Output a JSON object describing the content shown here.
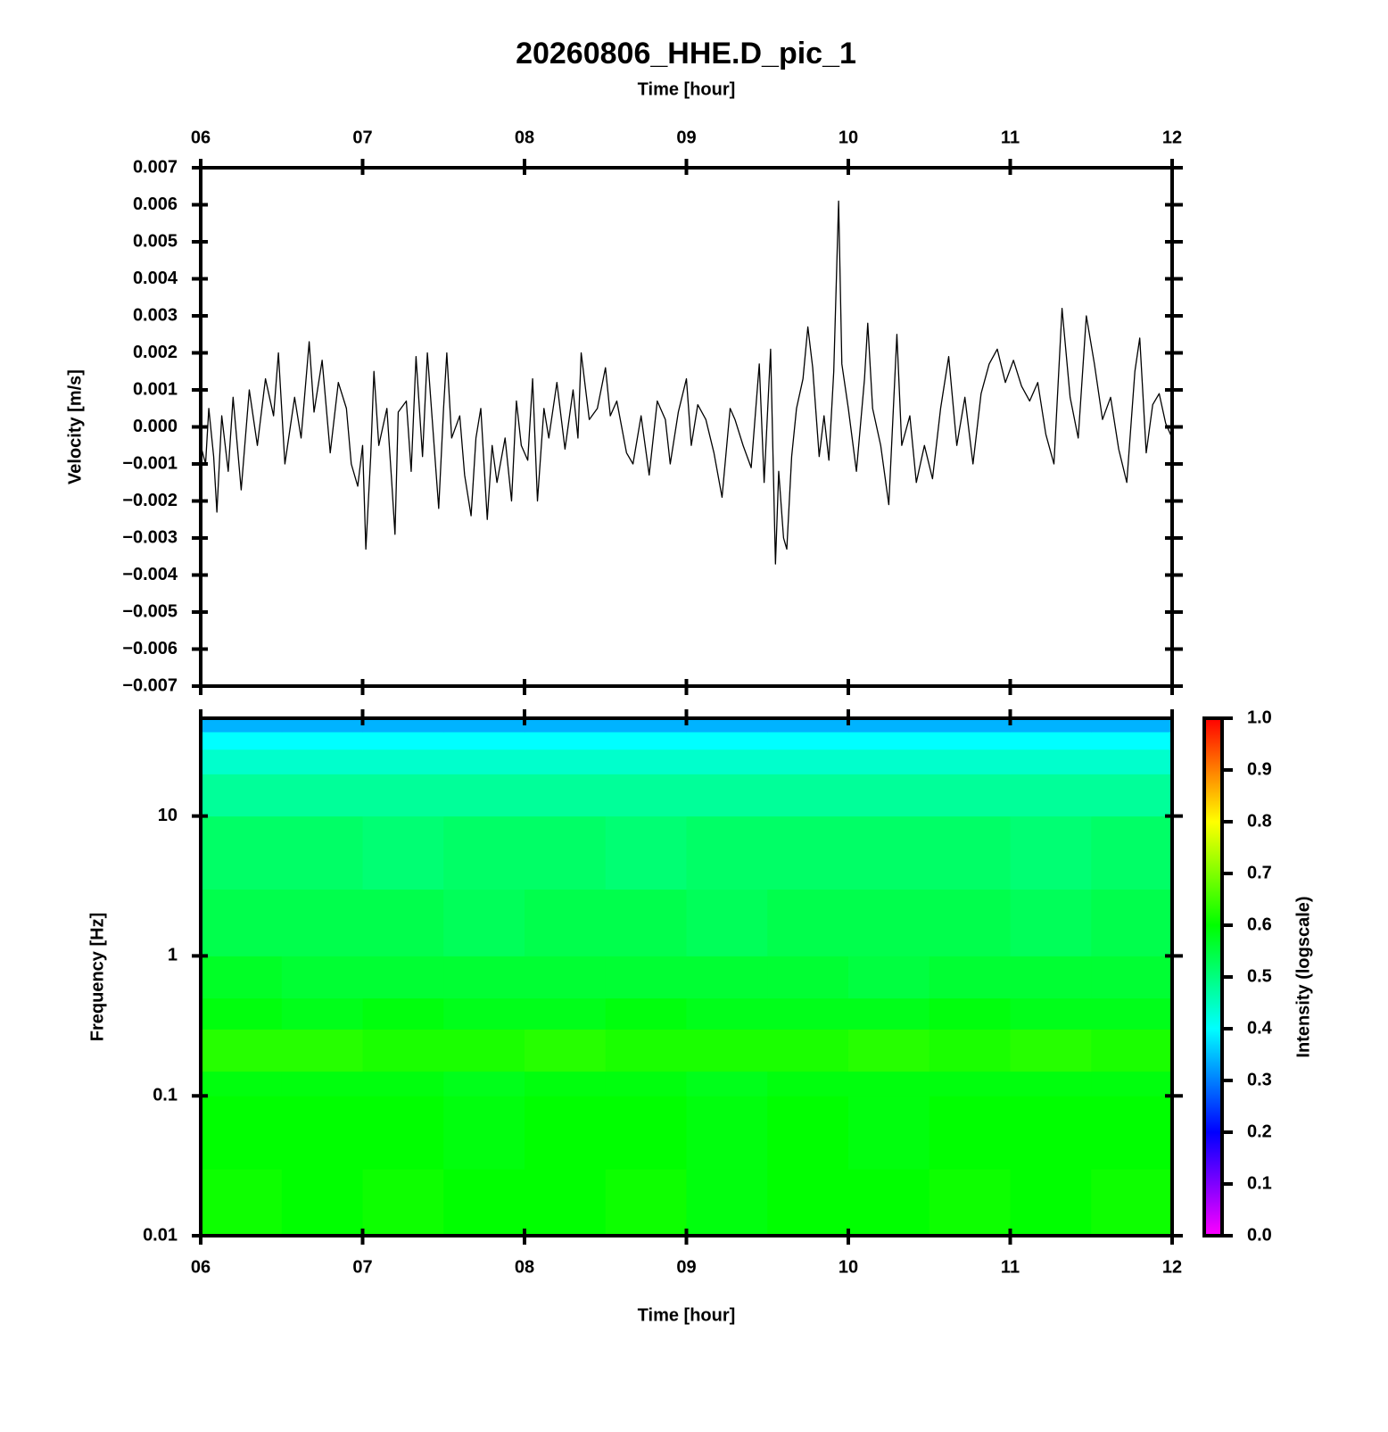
{
  "chart_data": [
    {
      "type": "line",
      "title": "20260806_HHE.D_pic_1",
      "xlabel": "Time [hour]",
      "ylabel": "Velocity [m/s]",
      "xaxis_position": "top",
      "color": "#000000",
      "xlim": [
        6,
        12
      ],
      "xticks": [
        {
          "value": 6,
          "label": "06"
        },
        {
          "value": 7,
          "label": "07"
        },
        {
          "value": 8,
          "label": "08"
        },
        {
          "value": 9,
          "label": "09"
        },
        {
          "value": 10,
          "label": "10"
        },
        {
          "value": 11,
          "label": "11"
        },
        {
          "value": 12,
          "label": "12"
        }
      ],
      "ylim": [
        -0.007,
        0.007
      ],
      "yticks": [
        {
          "value": -0.007,
          "label": "−0.007"
        },
        {
          "value": -0.006,
          "label": "−0.006"
        },
        {
          "value": -0.005,
          "label": "−0.005"
        },
        {
          "value": -0.004,
          "label": "−0.004"
        },
        {
          "value": -0.003,
          "label": "−0.003"
        },
        {
          "value": -0.002,
          "label": "−0.002"
        },
        {
          "value": -0.001,
          "label": "−0.001"
        },
        {
          "value": 0,
          "label": "0.000"
        },
        0.001,
        0.002,
        0.003,
        0.004,
        0.005,
        0.006,
        0.007
      ],
      "x": [
        6.0,
        6.03,
        6.05,
        6.08,
        6.1,
        6.13,
        6.17,
        6.2,
        6.25,
        6.3,
        6.35,
        6.4,
        6.45,
        6.48,
        6.52,
        6.58,
        6.62,
        6.67,
        6.7,
        6.75,
        6.8,
        6.85,
        6.9,
        6.93,
        6.97,
        7.0,
        7.02,
        7.05,
        7.07,
        7.1,
        7.15,
        7.18,
        7.2,
        7.22,
        7.27,
        7.3,
        7.33,
        7.37,
        7.4,
        7.43,
        7.47,
        7.5,
        7.52,
        7.55,
        7.6,
        7.63,
        7.67,
        7.7,
        7.73,
        7.77,
        7.8,
        7.83,
        7.88,
        7.92,
        7.95,
        7.98,
        8.02,
        8.05,
        8.08,
        8.12,
        8.15,
        8.2,
        8.25,
        8.3,
        8.33,
        8.35,
        8.4,
        8.45,
        8.5,
        8.53,
        8.57,
        8.63,
        8.67,
        8.72,
        8.77,
        8.82,
        8.87,
        8.9,
        8.95,
        9.0,
        9.03,
        9.07,
        9.12,
        9.17,
        9.22,
        9.27,
        9.3,
        9.35,
        9.4,
        9.45,
        9.48,
        9.52,
        9.55,
        9.57,
        9.6,
        9.62,
        9.65,
        9.68,
        9.72,
        9.75,
        9.78,
        9.82,
        9.85,
        9.88,
        9.91,
        9.94,
        9.96,
        10.0,
        10.05,
        10.1,
        10.12,
        10.15,
        10.2,
        10.25,
        10.3,
        10.33,
        10.38,
        10.42,
        10.47,
        10.52,
        10.57,
        10.62,
        10.67,
        10.72,
        10.77,
        10.82,
        10.87,
        10.92,
        10.97,
        11.02,
        11.07,
        11.12,
        11.17,
        11.22,
        11.27,
        11.32,
        11.37,
        11.42,
        11.47,
        11.52,
        11.57,
        11.62,
        11.67,
        11.72,
        11.77,
        11.8,
        11.84,
        11.88,
        11.92,
        11.96,
        12.0
      ],
      "values": [
        -0.0005,
        -0.001,
        0.0005,
        -0.0008,
        -0.0023,
        0.0003,
        -0.0012,
        0.0008,
        -0.0017,
        0.001,
        -0.0005,
        0.0013,
        0.0003,
        0.002,
        -0.001,
        0.0008,
        -0.0003,
        0.0023,
        0.0004,
        0.0018,
        -0.0007,
        0.0012,
        0.0005,
        -0.001,
        -0.0016,
        -0.0005,
        -0.0033,
        -0.0008,
        0.0015,
        -0.0005,
        0.0005,
        -0.0015,
        -0.0029,
        0.0004,
        0.0007,
        -0.0012,
        0.0019,
        -0.0008,
        0.002,
        0.0002,
        -0.0022,
        0.0005,
        0.002,
        -0.0003,
        0.0003,
        -0.0013,
        -0.0024,
        -0.0003,
        0.0005,
        -0.0025,
        -0.0005,
        -0.0015,
        -0.0003,
        -0.002,
        0.0007,
        -0.0005,
        -0.0009,
        0.0013,
        -0.002,
        0.0005,
        -0.0003,
        0.0012,
        -0.0006,
        0.001,
        -0.0003,
        0.002,
        0.0002,
        0.0005,
        0.0016,
        0.0003,
        0.0007,
        -0.0007,
        -0.001,
        0.0003,
        -0.0013,
        0.0007,
        0.0002,
        -0.001,
        0.0004,
        0.0013,
        -0.0005,
        0.0006,
        0.0002,
        -0.0007,
        -0.0019,
        0.0005,
        0.0002,
        -0.0005,
        -0.0011,
        0.0017,
        -0.0015,
        0.0021,
        -0.0037,
        -0.0012,
        -0.003,
        -0.0033,
        -0.0008,
        0.0005,
        0.0013,
        0.0027,
        0.0016,
        -0.0008,
        0.0003,
        -0.0009,
        0.0015,
        0.0061,
        0.0017,
        0.0005,
        -0.0012,
        0.0013,
        0.0028,
        0.0005,
        -0.0005,
        -0.0021,
        0.0025,
        -0.0005,
        0.0003,
        -0.0015,
        -0.0005,
        -0.0014,
        0.0005,
        0.0019,
        -0.0005,
        0.0008,
        -0.001,
        0.0009,
        0.0017,
        0.0021,
        0.0012,
        0.0018,
        0.0011,
        0.0007,
        0.0012,
        -0.0002,
        -0.001,
        0.0032,
        0.0008,
        -0.0003,
        0.003,
        0.0017,
        0.0002,
        0.0008,
        -0.0006,
        -0.0015,
        0.0015,
        0.0024,
        -0.0007,
        0.0006,
        0.0009,
        0.0001,
        -0.0003
      ]
    },
    {
      "type": "heatmap",
      "xlabel": "Time [hour]",
      "ylabel": "Frequency [Hz]",
      "xaxis_position": "bottom",
      "log_y": true,
      "xlim": [
        6,
        12
      ],
      "xticks": [
        {
          "value": 6,
          "label": "06"
        },
        {
          "value": 7,
          "label": "07"
        },
        {
          "value": 8,
          "label": "08"
        },
        {
          "value": 9,
          "label": "09"
        },
        {
          "value": 10,
          "label": "10"
        },
        {
          "value": 11,
          "label": "11"
        },
        {
          "value": 12,
          "label": "12"
        }
      ],
      "ylim": [
        0.01,
        50
      ],
      "yticks": [
        0.01,
        0.1,
        1,
        10
      ],
      "x_edges": [
        6,
        6.5,
        7,
        7.5,
        8,
        8.5,
        9,
        9.5,
        10,
        10.5,
        11,
        11.5,
        12
      ],
      "y_edges": [
        0.01,
        0.03,
        0.1,
        0.15,
        0.3,
        0.5,
        1,
        3,
        10,
        20,
        30,
        40,
        50
      ],
      "z": [
        [
          0.61,
          0.6,
          0.61,
          0.6,
          0.6,
          0.61,
          0.59,
          0.6,
          0.6,
          0.61,
          0.6,
          0.61
        ],
        [
          0.6,
          0.6,
          0.6,
          0.59,
          0.6,
          0.6,
          0.59,
          0.6,
          0.59,
          0.6,
          0.6,
          0.6
        ],
        [
          0.59,
          0.59,
          0.59,
          0.58,
          0.59,
          0.59,
          0.58,
          0.59,
          0.59,
          0.59,
          0.59,
          0.59
        ],
        [
          0.63,
          0.63,
          0.62,
          0.62,
          0.63,
          0.62,
          0.62,
          0.62,
          0.63,
          0.62,
          0.63,
          0.62
        ],
        [
          0.59,
          0.58,
          0.59,
          0.58,
          0.58,
          0.59,
          0.58,
          0.58,
          0.58,
          0.59,
          0.58,
          0.58
        ],
        [
          0.57,
          0.56,
          0.56,
          0.56,
          0.56,
          0.56,
          0.56,
          0.56,
          0.55,
          0.56,
          0.56,
          0.56
        ],
        [
          0.54,
          0.54,
          0.54,
          0.53,
          0.54,
          0.54,
          0.53,
          0.54,
          0.54,
          0.54,
          0.53,
          0.54
        ],
        [
          0.52,
          0.52,
          0.51,
          0.52,
          0.52,
          0.51,
          0.52,
          0.52,
          0.52,
          0.52,
          0.51,
          0.52
        ],
        [
          0.48,
          0.48,
          0.48,
          0.48,
          0.48,
          0.48,
          0.48,
          0.48,
          0.48,
          0.48,
          0.48,
          0.48
        ],
        [
          0.44,
          0.44,
          0.44,
          0.44,
          0.44,
          0.44,
          0.44,
          0.44,
          0.44,
          0.44,
          0.44,
          0.44
        ],
        [
          0.4,
          0.4,
          0.4,
          0.4,
          0.4,
          0.4,
          0.4,
          0.4,
          0.4,
          0.4,
          0.4,
          0.4
        ],
        [
          0.34,
          0.34,
          0.34,
          0.34,
          0.34,
          0.34,
          0.34,
          0.34,
          0.34,
          0.34,
          0.34,
          0.34
        ]
      ],
      "colorbar": {
        "label": "Intensity (logscale)",
        "lim": [
          0,
          1
        ],
        "ticks": [
          {
            "value": 0,
            "label": "0.0"
          },
          0.1,
          0.2,
          0.3,
          0.4,
          0.5,
          0.6,
          0.7,
          0.8,
          0.9,
          {
            "value": 1,
            "label": "1.0"
          }
        ],
        "colorscale": [
          [
            0,
            "#ff00ff"
          ],
          [
            0.2,
            "#0000ff"
          ],
          [
            0.4,
            "#00ffff"
          ],
          [
            0.6,
            "#00ff00"
          ],
          [
            0.8,
            "#ffff00"
          ],
          [
            1,
            "#ff0000"
          ]
        ]
      }
    }
  ]
}
